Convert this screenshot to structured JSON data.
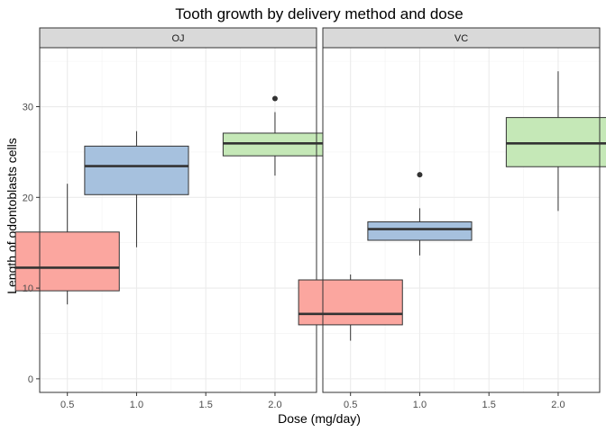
{
  "chart_data": {
    "type": "boxplot",
    "title": "Tooth growth by delivery method and dose",
    "xlabel": "Dose (mg/day)",
    "ylabel": "Length of odontoblasts cells",
    "x_ticks": [
      "0.5",
      "1.0",
      "1.5",
      "2.0"
    ],
    "y_ticks": [
      "0",
      "10",
      "20",
      "30"
    ],
    "xlim": [
      0.3,
      2.3
    ],
    "ylim": [
      -1.5,
      36.5
    ],
    "grid": true,
    "colors": {
      "0.5": "#fba69f",
      "1.0": "#a6c1de",
      "2.0": "#c5e8b7"
    },
    "facets": [
      {
        "name": "OJ",
        "boxes": [
          {
            "dose": 0.5,
            "min": 8.2,
            "q1": 9.7,
            "median": 12.25,
            "q3": 16.18,
            "max": 21.5,
            "outliers": []
          },
          {
            "dose": 1.0,
            "min": 14.5,
            "q1": 20.3,
            "median": 23.45,
            "q3": 25.65,
            "max": 27.3,
            "outliers": []
          },
          {
            "dose": 2.0,
            "min": 22.4,
            "q1": 24.58,
            "median": 25.95,
            "q3": 27.08,
            "max": 29.4,
            "outliers": [
              30.9
            ]
          }
        ]
      },
      {
        "name": "VC",
        "boxes": [
          {
            "dose": 0.5,
            "min": 4.2,
            "q1": 5.95,
            "median": 7.15,
            "q3": 10.9,
            "max": 11.5,
            "outliers": []
          },
          {
            "dose": 1.0,
            "min": 13.6,
            "q1": 15.27,
            "median": 16.5,
            "q3": 17.3,
            "max": 18.8,
            "outliers": [
              22.5
            ]
          },
          {
            "dose": 2.0,
            "min": 18.5,
            "q1": 23.38,
            "median": 25.95,
            "q3": 28.8,
            "max": 33.9,
            "outliers": []
          }
        ]
      }
    ]
  }
}
